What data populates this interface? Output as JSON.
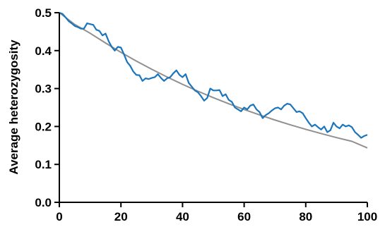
{
  "chart_data": {
    "type": "line",
    "title": "",
    "xlabel": "",
    "ylabel": "Average heterozygosity",
    "xlim": [
      0,
      100
    ],
    "ylim": [
      0,
      0.5
    ],
    "x_ticks": [
      "0",
      "20",
      "40",
      "60",
      "80",
      "100"
    ],
    "y_ticks": [
      "0.0",
      "0.1",
      "0.2",
      "0.3",
      "0.4",
      "0.5"
    ],
    "grid": false,
    "legend": "none",
    "series": [
      {
        "color": "#1a75bc",
        "x": [
          0,
          1,
          2,
          3,
          4,
          5,
          6,
          7,
          8,
          9,
          10,
          11,
          12,
          13,
          14,
          15,
          16,
          17,
          18,
          19,
          20,
          21,
          22,
          23,
          24,
          25,
          26,
          27,
          28,
          29,
          30,
          31,
          32,
          33,
          34,
          35,
          36,
          37,
          38,
          39,
          40,
          41,
          42,
          43,
          44,
          45,
          46,
          47,
          48,
          49,
          50,
          51,
          52,
          53,
          54,
          55,
          56,
          57,
          58,
          59,
          60,
          61,
          62,
          63,
          64,
          65,
          66,
          67,
          68,
          69,
          70,
          71,
          72,
          73,
          74,
          75,
          76,
          77,
          78,
          79,
          80,
          81,
          82,
          83,
          84,
          85,
          86,
          87,
          88,
          89,
          90,
          91,
          92,
          93,
          94,
          95,
          96,
          97,
          98,
          99,
          100
        ],
        "values": [
          0.5,
          0.497,
          0.488,
          0.478,
          0.472,
          0.465,
          0.462,
          0.458,
          0.458,
          0.472,
          0.47,
          0.468,
          0.455,
          0.452,
          0.44,
          0.445,
          0.425,
          0.41,
          0.4,
          0.41,
          0.408,
          0.39,
          0.37,
          0.36,
          0.345,
          0.336,
          0.335,
          0.32,
          0.327,
          0.325,
          0.328,
          0.33,
          0.338,
          0.328,
          0.32,
          0.327,
          0.33,
          0.34,
          0.348,
          0.336,
          0.33,
          0.338,
          0.315,
          0.305,
          0.295,
          0.29,
          0.28,
          0.268,
          0.275,
          0.3,
          0.295,
          0.295,
          0.296,
          0.28,
          0.285,
          0.27,
          0.265,
          0.25,
          0.245,
          0.24,
          0.25,
          0.245,
          0.255,
          0.258,
          0.245,
          0.238,
          0.222,
          0.23,
          0.235,
          0.242,
          0.248,
          0.25,
          0.245,
          0.255,
          0.26,
          0.258,
          0.248,
          0.238,
          0.24,
          0.235,
          0.222,
          0.21,
          0.2,
          0.205,
          0.198,
          0.192,
          0.2,
          0.185,
          0.19,
          0.21,
          0.2,
          0.195,
          0.205,
          0.2,
          0.203,
          0.198,
          0.185,
          0.178,
          0.17,
          0.175,
          0.178
        ]
      },
      {
        "color": "#909090",
        "x": [
          0,
          5,
          10,
          15,
          20,
          25,
          30,
          35,
          40,
          45,
          50,
          55,
          60,
          65,
          70,
          75,
          80,
          85,
          90,
          95,
          100
        ],
        "values": [
          0.5,
          0.4691,
          0.4458,
          0.4201,
          0.3955,
          0.3725,
          0.3508,
          0.3304,
          0.3111,
          0.293,
          0.2759,
          0.2598,
          0.2447,
          0.2305,
          0.217,
          0.2044,
          0.1925,
          0.1813,
          0.1707,
          0.1608,
          0.1434
        ]
      }
    ]
  }
}
